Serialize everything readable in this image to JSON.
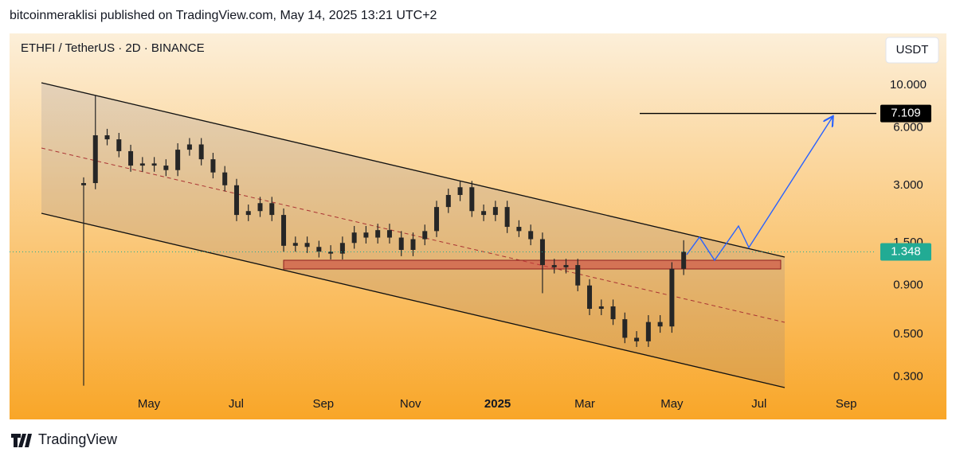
{
  "header": {
    "publisher": "bitcoinmeraklisi published on TradingView.com, May 14, 2025 13:21 UTC+2"
  },
  "chart_data": {
    "type": "candlestick",
    "title": "ETHFI / TetherUS · 2D · BINANCE",
    "y_unit": "USDT",
    "log_scale": true,
    "up_color": "#262626",
    "down_color": "#262626",
    "x": [
      2.5,
      2.77,
      3.04,
      3.31,
      3.58,
      3.85,
      4.12,
      4.39,
      4.66,
      4.93,
      5.2,
      5.47,
      5.74,
      6.01,
      6.28,
      6.55,
      6.82,
      7.09,
      7.36,
      7.63,
      7.9,
      8.17,
      8.44,
      8.71,
      8.98,
      9.25,
      9.52,
      9.79,
      10.06,
      10.33,
      10.6,
      10.87,
      11.14,
      11.41,
      11.68,
      11.95,
      12.22,
      12.49,
      12.76,
      13.03,
      13.3,
      13.57,
      13.84,
      14.11,
      14.38,
      14.65,
      14.92,
      15.19,
      15.46,
      15.73,
      16.0,
      16.27
    ],
    "open": [
      3.0,
      3.08,
      5.47,
      5.21,
      4.52,
      3.8,
      3.9,
      3.8,
      3.6,
      4.6,
      4.9,
      4.1,
      3.5,
      3.0,
      2.1,
      2.2,
      2.42,
      2.1,
      1.45,
      1.5,
      1.43,
      1.35,
      1.32,
      1.5,
      1.7,
      1.6,
      1.75,
      1.6,
      1.38,
      1.57,
      1.73,
      2.31,
      2.67,
      2.93,
      2.2,
      2.1,
      2.31,
      1.82,
      1.73,
      1.57,
      1.15,
      1.12,
      1.15,
      0.9,
      0.68,
      0.7,
      0.6,
      0.48,
      0.46,
      0.58,
      0.55,
      1.1
    ],
    "high": [
      3.3,
      8.8,
      5.91,
      5.63,
      4.88,
      4.21,
      4.21,
      4.1,
      4.97,
      5.29,
      5.29,
      4.43,
      3.78,
      3.24,
      2.38,
      2.61,
      2.61,
      2.27,
      1.62,
      1.62,
      1.54,
      1.46,
      1.62,
      1.84,
      1.84,
      1.89,
      1.89,
      1.73,
      1.7,
      1.87,
      2.49,
      2.88,
      3.16,
      3.16,
      2.38,
      2.49,
      2.49,
      1.97,
      1.87,
      1.7,
      1.24,
      1.24,
      1.24,
      0.97,
      0.76,
      0.76,
      0.65,
      0.52,
      0.63,
      0.63,
      1.19,
      1.55
    ],
    "low": [
      0.27,
      2.86,
      4.85,
      4.2,
      3.53,
      3.53,
      3.53,
      3.35,
      3.35,
      4.28,
      3.81,
      3.26,
      2.79,
      1.95,
      1.95,
      2.05,
      1.95,
      1.35,
      1.35,
      1.33,
      1.26,
      1.23,
      1.23,
      1.4,
      1.49,
      1.49,
      1.49,
      1.28,
      1.28,
      1.46,
      1.61,
      2.15,
      2.48,
      2.05,
      1.95,
      1.95,
      1.69,
      1.61,
      1.46,
      0.82,
      1.04,
      1.04,
      0.84,
      0.63,
      0.63,
      0.56,
      0.45,
      0.43,
      0.43,
      0.51,
      0.51,
      1.02
    ],
    "close": [
      3.08,
      5.47,
      5.21,
      4.52,
      3.8,
      3.9,
      3.8,
      3.6,
      4.6,
      4.9,
      4.1,
      3.5,
      3.0,
      2.1,
      2.2,
      2.42,
      2.1,
      1.45,
      1.5,
      1.43,
      1.35,
      1.32,
      1.5,
      1.7,
      1.6,
      1.75,
      1.6,
      1.38,
      1.57,
      1.73,
      2.31,
      2.67,
      2.93,
      2.2,
      2.1,
      2.31,
      1.82,
      1.73,
      1.57,
      1.15,
      1.12,
      1.15,
      0.9,
      0.68,
      0.7,
      0.6,
      0.48,
      0.46,
      0.58,
      0.55,
      1.1,
      1.35
    ],
    "xlim": [
      0.8,
      20.6
    ],
    "xticks": [
      {
        "value": 4,
        "label": "May"
      },
      {
        "value": 6,
        "label": "Jul"
      },
      {
        "value": 8,
        "label": "Sep"
      },
      {
        "value": 10,
        "label": "Nov"
      },
      {
        "value": 12,
        "label": "2025"
      },
      {
        "value": 14,
        "label": "Mar"
      },
      {
        "value": 16,
        "label": "May"
      },
      {
        "value": 18,
        "label": "Jul"
      },
      {
        "value": 20,
        "label": "Sep"
      }
    ],
    "ylim": [
      0.18,
      18.6
    ],
    "yticks": [
      {
        "value": 10,
        "label": "10.000"
      },
      {
        "value": 6,
        "label": "6.000"
      },
      {
        "value": 3,
        "label": "3.000"
      },
      {
        "value": 1.5,
        "label": "1.500"
      },
      {
        "value": 0.9,
        "label": "0.900"
      },
      {
        "value": 0.5,
        "label": "0.500"
      },
      {
        "value": 0.3,
        "label": "0.300"
      }
    ],
    "target_price": 7.109,
    "target_color": "#000000",
    "last_price": 1.348,
    "last_price_color": "#22ab94"
  },
  "footer": {
    "brand": "TradingView"
  }
}
